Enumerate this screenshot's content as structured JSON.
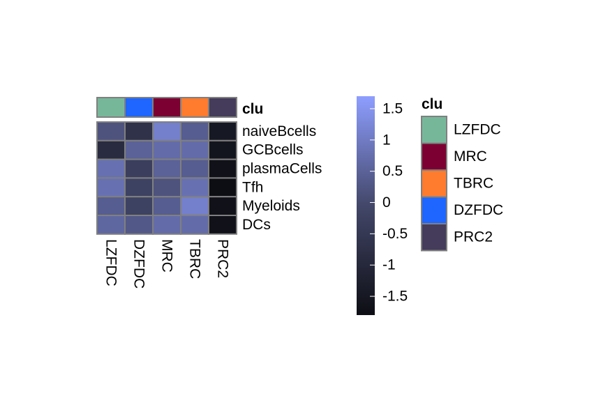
{
  "chart_data": {
    "type": "heatmap",
    "columns": [
      "LZFDC",
      "DZFDC",
      "MRC",
      "TBRC",
      "PRC2"
    ],
    "rows": [
      "naiveBcells",
      "GCBcells",
      "plasmaCells",
      "Tfh",
      "Myeloids",
      "DCs"
    ],
    "values": [
      [
        0.2,
        -0.7,
        1.1,
        0.4,
        -1.5
      ],
      [
        -0.9,
        0.5,
        0.7,
        0.7,
        -1.6
      ],
      [
        0.8,
        -0.3,
        0.5,
        0.4,
        -1.7
      ],
      [
        0.8,
        -0.2,
        0.2,
        0.8,
        -1.8
      ],
      [
        0.4,
        -0.2,
        0.4,
        1.1,
        -1.7
      ],
      [
        0.6,
        0.3,
        0.7,
        0.7,
        -1.7
      ]
    ],
    "annotation": {
      "title": "clu",
      "levels": [
        {
          "label": "LZFDC",
          "color": "#76B79A"
        },
        {
          "label": "MRC",
          "color": "#7C0031"
        },
        {
          "label": "TBRC",
          "color": "#FF7B2E"
        },
        {
          "label": "DZFDC",
          "color": "#1E66FF"
        },
        {
          "label": "PRC2",
          "color": "#443C5A"
        }
      ],
      "column_colors": [
        "#76B79A",
        "#1E66FF",
        "#7C0031",
        "#FF7B2E",
        "#443C5A"
      ]
    },
    "colorbar": {
      "range": [
        -1.8,
        1.7
      ],
      "ticks": [
        1.5,
        1,
        0.5,
        0,
        -0.5,
        -1,
        -1.5
      ],
      "tick_labels": [
        "1.5",
        "1",
        "0.5",
        "0",
        "-0.5",
        "-1",
        "-1.5"
      ],
      "low_color": "#0D0E14",
      "mid_color": "#434769",
      "high_color": "#8E9EFF"
    },
    "cell_border_color": "#808080"
  }
}
